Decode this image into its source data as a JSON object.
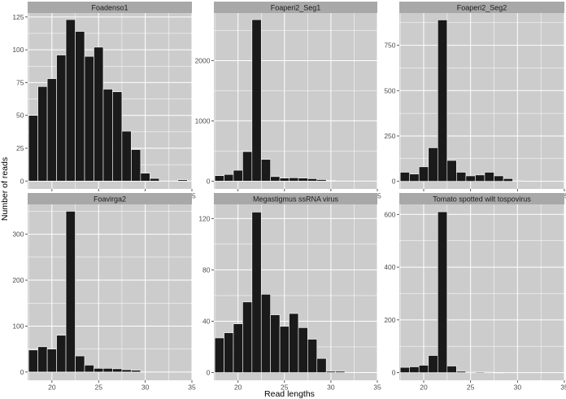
{
  "figure": {
    "xlabel": "Read lengths",
    "ylabel": "Number of reads"
  },
  "style": {
    "panel_bg": "#cccccc",
    "grid": "#ffffff",
    "strip_bg": "#a8a8a8",
    "bar_fill": "#1a1a1a",
    "bar_edge": "#ffffff"
  },
  "chart_data": [
    {
      "type": "bar",
      "title": "Foadenso1",
      "x": [
        18,
        19,
        20,
        21,
        22,
        23,
        24,
        25,
        26,
        27,
        28,
        29,
        30,
        31,
        34
      ],
      "values": [
        50,
        72,
        78,
        96,
        123,
        114,
        95,
        102,
        70,
        68,
        38,
        24,
        6,
        2,
        1
      ],
      "xlim": [
        17.4,
        35
      ],
      "xticks": [
        20,
        25,
        30,
        35
      ],
      "ylim": [
        -6,
        128
      ],
      "yticks": [
        0,
        25,
        50,
        75,
        100,
        125
      ],
      "grid": true
    },
    {
      "type": "bar",
      "title": "Foaperi2_Seg1",
      "x": [
        18,
        19,
        20,
        21,
        22,
        23,
        24,
        25,
        26,
        27,
        28,
        29,
        30
      ],
      "values": [
        90,
        110,
        180,
        490,
        2680,
        360,
        75,
        50,
        55,
        50,
        40,
        25,
        8
      ],
      "xlim": [
        17.4,
        35
      ],
      "xticks": [
        20,
        25,
        30,
        35
      ],
      "ylim": [
        -130,
        2790
      ],
      "yticks": [
        0,
        1000,
        2000
      ],
      "grid": true
    },
    {
      "type": "bar",
      "title": "Foaperi2_Seg2",
      "x": [
        18,
        19,
        20,
        21,
        22,
        23,
        24,
        25,
        26,
        27,
        28,
        29,
        30
      ],
      "values": [
        50,
        40,
        80,
        185,
        890,
        115,
        50,
        30,
        35,
        50,
        30,
        15,
        3
      ],
      "xlim": [
        17.4,
        35
      ],
      "xticks": [
        20,
        25,
        30,
        35
      ],
      "ylim": [
        -42,
        928
      ],
      "yticks": [
        0,
        250,
        500,
        750
      ],
      "grid": true
    },
    {
      "type": "bar",
      "title": "Foavirga2",
      "x": [
        18,
        19,
        20,
        21,
        22,
        23,
        24,
        25,
        26,
        27,
        28,
        29
      ],
      "values": [
        48,
        55,
        50,
        80,
        350,
        35,
        15,
        8,
        8,
        7,
        5,
        4
      ],
      "xlim": [
        17.4,
        35
      ],
      "xticks": [
        20,
        25,
        30,
        35
      ],
      "ylim": [
        -18,
        365
      ],
      "yticks": [
        0,
        100,
        200,
        300
      ],
      "grid": true
    },
    {
      "type": "bar",
      "title": "Megastigmus ssRNA virus",
      "x": [
        18,
        19,
        20,
        21,
        22,
        23,
        24,
        25,
        26,
        27,
        28,
        29,
        30,
        31
      ],
      "values": [
        27,
        31,
        38,
        55,
        125,
        61,
        45,
        36,
        46,
        35,
        26,
        11,
        1,
        1
      ],
      "xlim": [
        17.4,
        35
      ],
      "xticks": [
        20,
        25,
        30,
        35
      ],
      "ylim": [
        -6,
        131
      ],
      "yticks": [
        0,
        40,
        80,
        120
      ],
      "grid": true
    },
    {
      "type": "bar",
      "title": "Tomato spotted wilt tospovirus",
      "x": [
        18,
        19,
        20,
        21,
        22,
        23,
        24,
        25,
        26,
        27,
        28
      ],
      "values": [
        20,
        22,
        28,
        65,
        610,
        25,
        5,
        2,
        3,
        2,
        1
      ],
      "xlim": [
        17.4,
        35
      ],
      "xticks": [
        20,
        25,
        30,
        35
      ],
      "ylim": [
        -29,
        638
      ],
      "yticks": [
        0,
        200,
        400,
        600
      ],
      "grid": true
    }
  ]
}
